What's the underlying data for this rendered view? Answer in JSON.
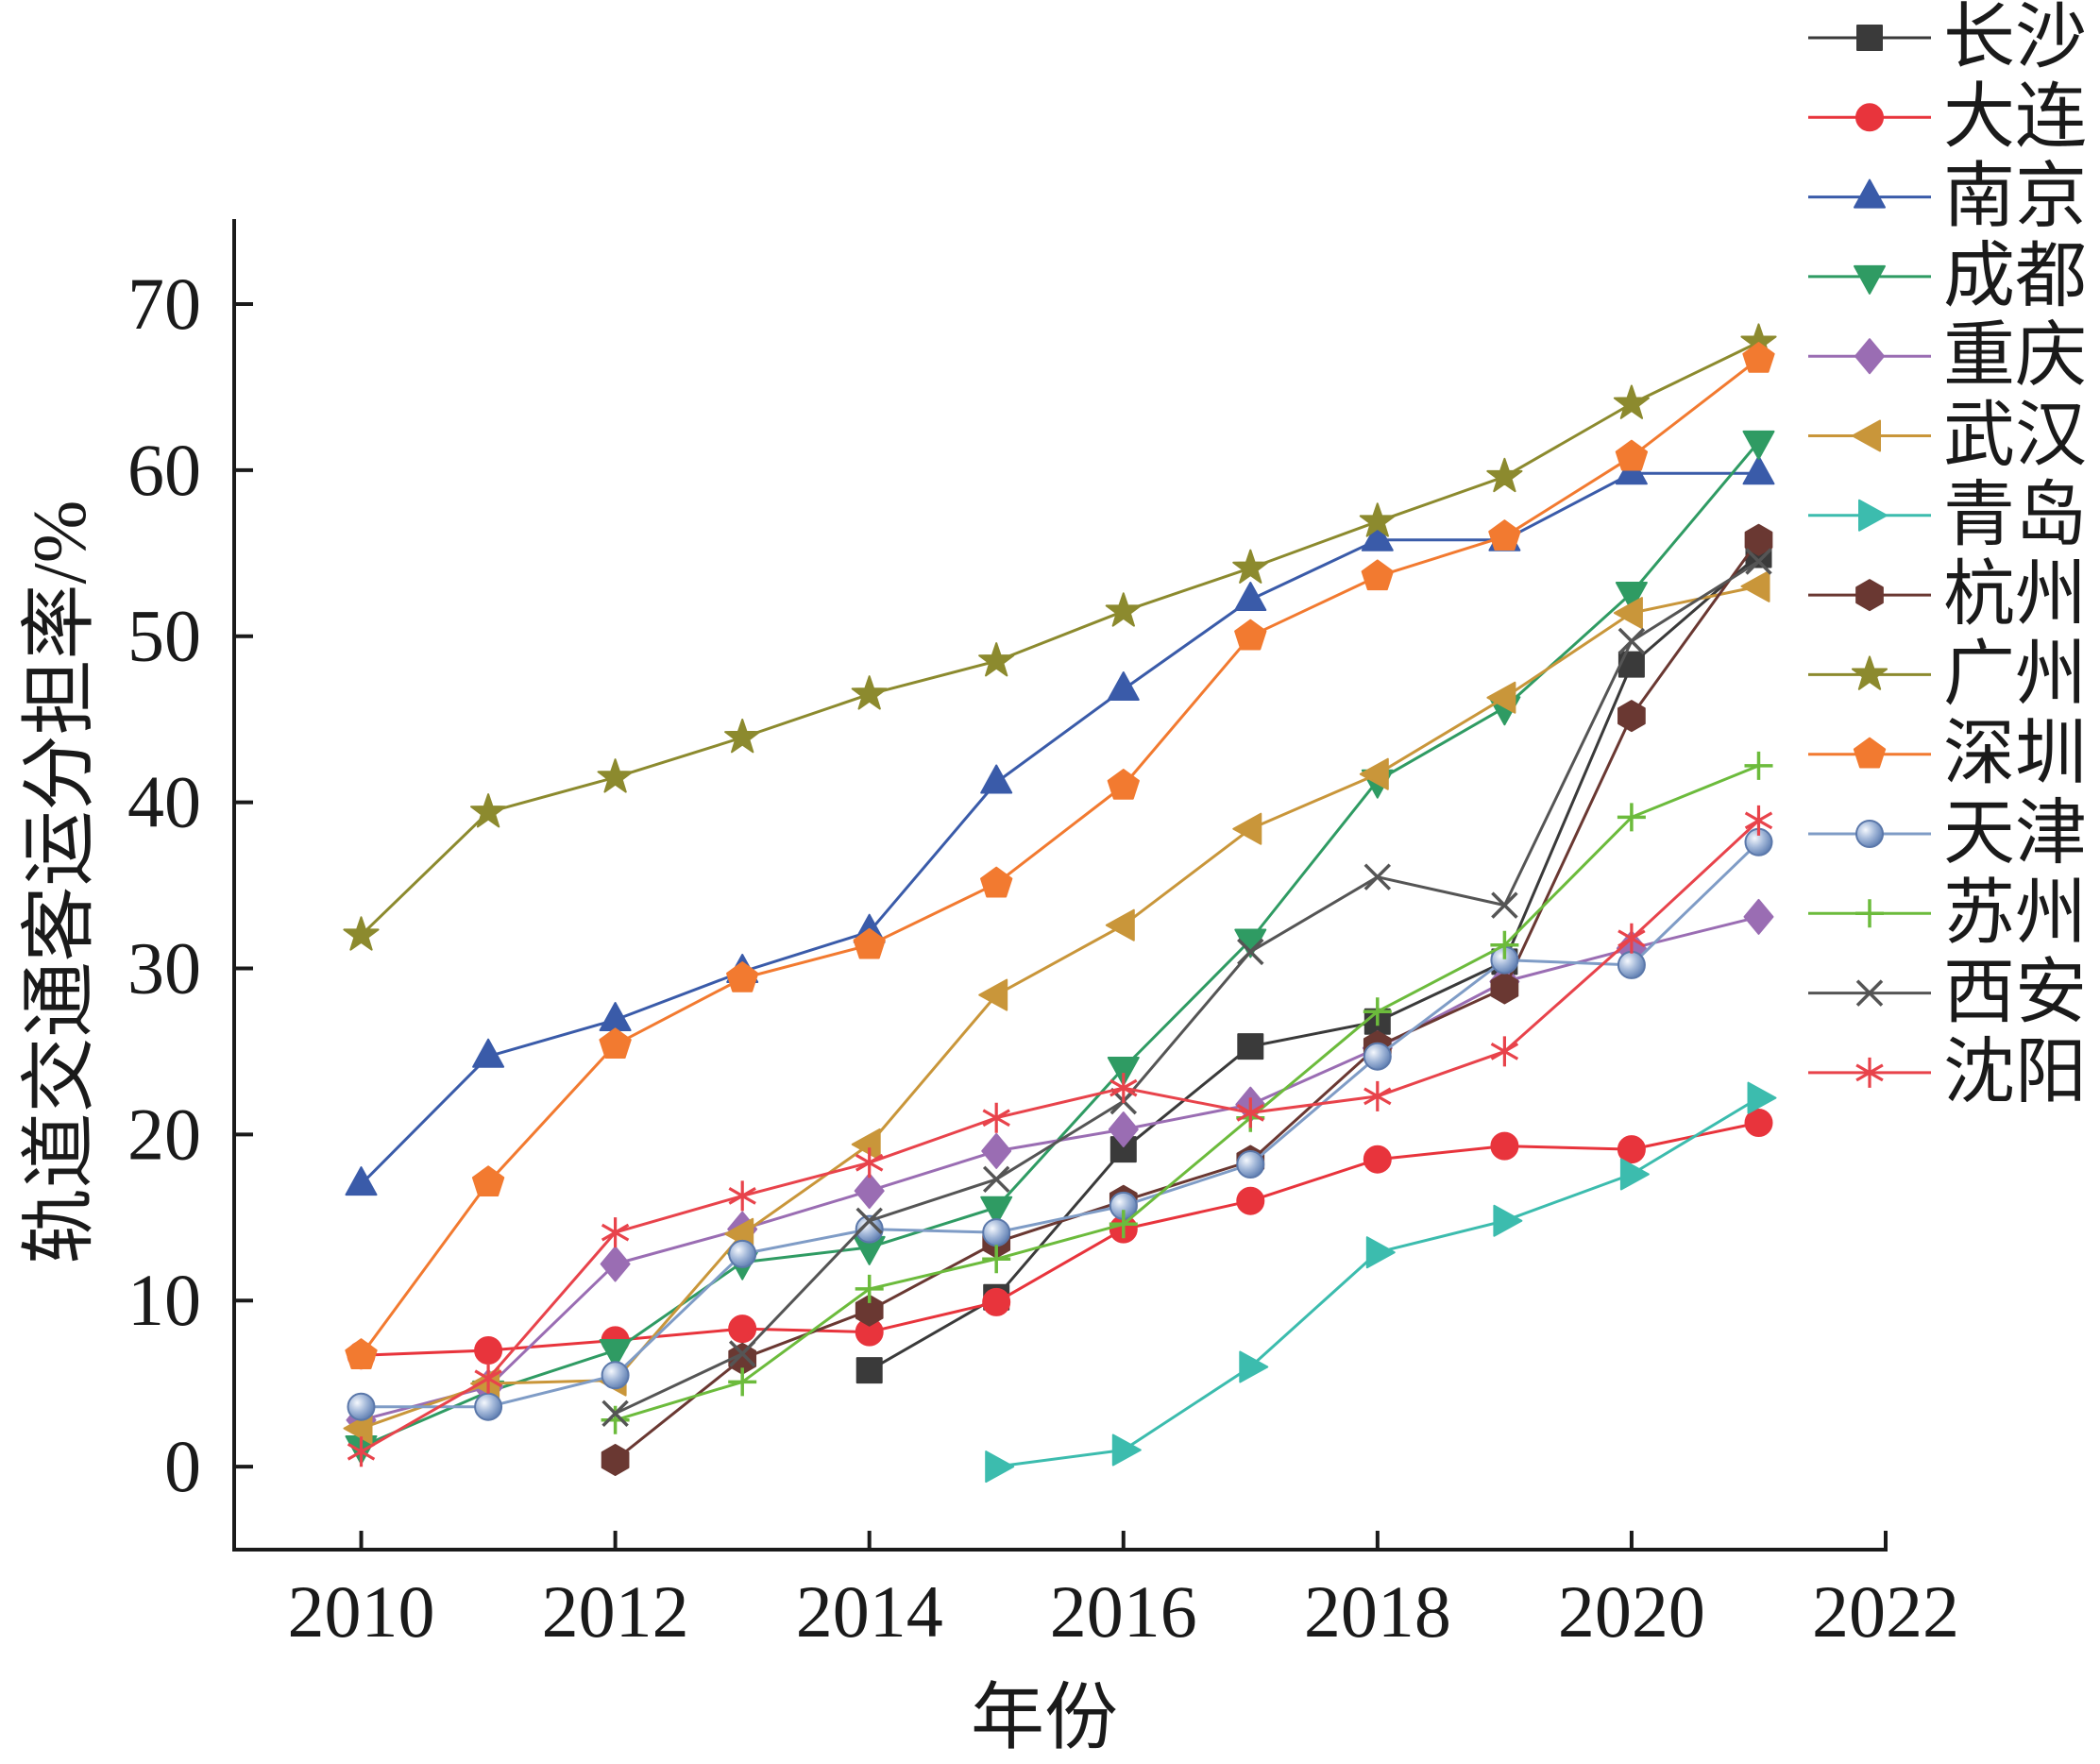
{
  "chart_data": {
    "type": "line",
    "xlabel": "年份",
    "ylabel": "轨道交通客运分担率/%",
    "x": [
      2010,
      2011,
      2012,
      2013,
      2014,
      2015,
      2016,
      2017,
      2018,
      2019,
      2020,
      2021
    ],
    "xlim": [
      2009,
      2022
    ],
    "ylim": [
      -5,
      75
    ],
    "xticks": [
      2010,
      2012,
      2014,
      2016,
      2018,
      2020,
      2022
    ],
    "yticks": [
      0,
      10,
      20,
      30,
      40,
      50,
      60,
      70
    ],
    "grid": false,
    "legend_position": "top-right",
    "series": [
      {
        "name": "长沙",
        "color": "#3a3a3a",
        "marker": "square",
        "values": [
          null,
          null,
          null,
          null,
          5.8,
          10.2,
          19.1,
          25.3,
          26.8,
          30.4,
          48.3,
          54.9
        ]
      },
      {
        "name": "大连",
        "color": "#e8343c",
        "marker": "circle",
        "values": [
          6.7,
          7.0,
          7.6,
          8.3,
          8.1,
          9.9,
          14.3,
          16.0,
          18.5,
          19.3,
          19.1,
          20.7
        ]
      },
      {
        "name": "南京",
        "color": "#3a5ba9",
        "marker": "triangle-up",
        "values": [
          17.0,
          24.7,
          26.9,
          29.8,
          32.2,
          41.2,
          46.8,
          52.2,
          55.8,
          55.8,
          59.8,
          59.8
        ]
      },
      {
        "name": "成都",
        "color": "#2f9b63",
        "marker": "triangle-down",
        "values": [
          1.2,
          4.5,
          7.0,
          12.3,
          13.2,
          15.6,
          24.0,
          31.7,
          41.3,
          45.7,
          52.6,
          61.7
        ]
      },
      {
        "name": "重庆",
        "color": "#9a6db3",
        "marker": "diamond",
        "values": [
          2.8,
          4.8,
          12.2,
          14.3,
          16.6,
          19.0,
          20.3,
          21.8,
          25.2,
          29.2,
          31.2,
          33.1
        ]
      },
      {
        "name": "武汉",
        "color": "#c9963a",
        "marker": "triangle-left",
        "values": [
          2.3,
          5.0,
          5.2,
          14.0,
          19.4,
          28.4,
          32.6,
          38.4,
          41.7,
          46.3,
          51.4,
          53.0
        ]
      },
      {
        "name": "青岛",
        "color": "#3cbcae",
        "marker": "triangle-right",
        "values": [
          null,
          null,
          null,
          null,
          null,
          0.0,
          1.0,
          6.0,
          12.9,
          14.8,
          17.6,
          22.2
        ]
      },
      {
        "name": "杭州",
        "color": "#6a3832",
        "marker": "hexagon",
        "values": [
          null,
          null,
          0.4,
          6.5,
          9.4,
          13.5,
          16.0,
          18.4,
          25.3,
          28.8,
          45.2,
          55.8
        ]
      },
      {
        "name": "广州",
        "color": "#8c8a2e",
        "marker": "star",
        "values": [
          32.0,
          39.4,
          41.5,
          43.9,
          46.5,
          48.5,
          51.5,
          54.1,
          56.9,
          59.6,
          64.0,
          67.7
        ]
      },
      {
        "name": "深圳",
        "color": "#f27a30",
        "marker": "pentagon",
        "values": [
          6.7,
          17.1,
          25.4,
          29.4,
          31.4,
          35.1,
          41.0,
          50.0,
          53.6,
          56.0,
          60.8,
          66.7
        ]
      },
      {
        "name": "天津",
        "color": "#7f9cc6",
        "marker": "sphere",
        "values": [
          3.6,
          3.6,
          5.5,
          12.8,
          14.3,
          14.1,
          15.7,
          18.2,
          24.7,
          30.5,
          30.2,
          37.6
        ]
      },
      {
        "name": "苏州",
        "color": "#6cbb3c",
        "marker": "plus",
        "values": [
          null,
          null,
          2.8,
          5.1,
          10.7,
          12.5,
          14.6,
          21.0,
          27.4,
          31.4,
          39.1,
          42.2
        ]
      },
      {
        "name": "西安",
        "color": "#555555",
        "marker": "x",
        "values": [
          null,
          null,
          3.2,
          6.8,
          14.8,
          17.3,
          22.0,
          31.0,
          35.5,
          33.8,
          49.7,
          54.5
        ]
      },
      {
        "name": "沈阳",
        "color": "#e8434b",
        "marker": "asterisk",
        "values": [
          0.9,
          5.3,
          14.1,
          16.3,
          18.3,
          21.0,
          22.8,
          21.3,
          22.3,
          25.0,
          31.8,
          38.9
        ]
      }
    ]
  }
}
